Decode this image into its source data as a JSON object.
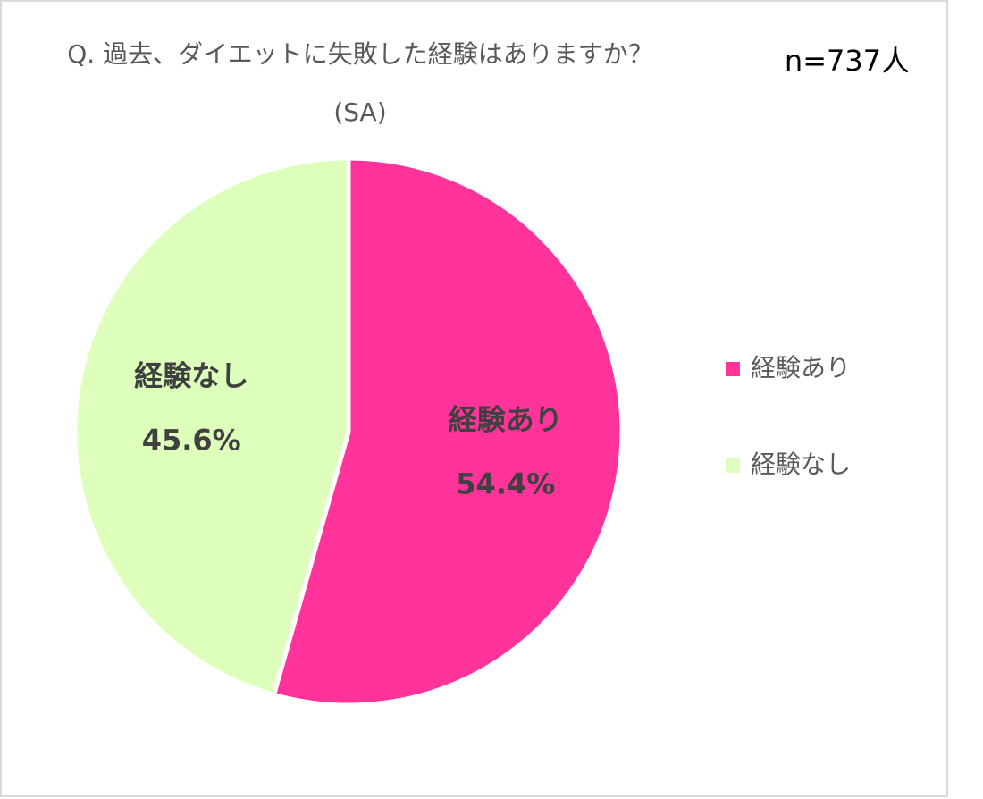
{
  "chart_data": {
    "type": "pie",
    "title": "Q. 過去、ダイエットに失敗した経験はありますか？",
    "subtitle": "(SA)",
    "annotation": "n=737人",
    "categories": [
      "経験あり",
      "経験なし"
    ],
    "values": [
      54.4,
      45.6
    ],
    "value_labels": [
      "54.4%",
      "45.6%"
    ],
    "colors": [
      "#ff3399",
      "#ddffbb"
    ],
    "legend": "right"
  }
}
